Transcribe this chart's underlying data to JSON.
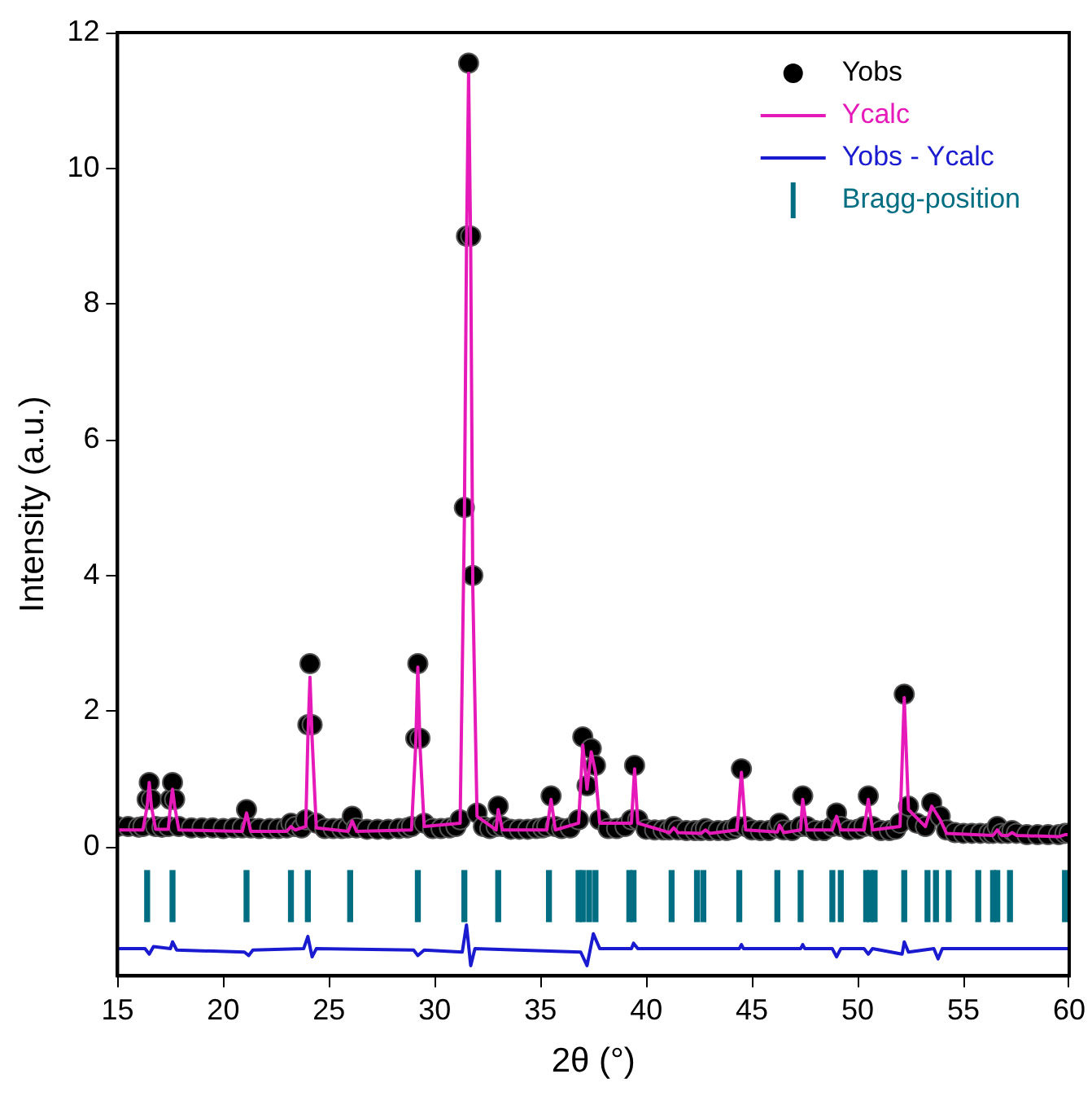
{
  "chart_data": {
    "type": "line",
    "xlabel": "2θ (°)",
    "ylabel": "Intensity (a.u.)",
    "xlim": [
      15,
      60
    ],
    "xticks": [
      15,
      20,
      25,
      30,
      35,
      40,
      45,
      50,
      55,
      60
    ],
    "ylim": [
      -1.9,
      12
    ],
    "yticks": [
      0,
      2,
      4,
      6,
      8,
      10,
      12
    ],
    "grid": false,
    "legend": "top right",
    "series": [
      {
        "name": "Yobs",
        "type": "scatter",
        "marker": "circle",
        "color": "#000000",
        "x": [
          15,
          15.5,
          16,
          16.2,
          16.4,
          16.5,
          16.6,
          16.8,
          17.1,
          17.4,
          17.5,
          17.6,
          17.7,
          17.9,
          18.5,
          19,
          19.5,
          20,
          20.5,
          20.9,
          21.1,
          21.3,
          21.7,
          22.2,
          22.6,
          23,
          23.2,
          23.4,
          23.7,
          23.9,
          24,
          24.1,
          24.2,
          24.4,
          24.8,
          25.2,
          25.6,
          25.9,
          26.1,
          26.3,
          26.8,
          27.3,
          27.8,
          28.3,
          28.7,
          28.9,
          29.1,
          29.2,
          29.3,
          29.5,
          29.9,
          30.3,
          30.7,
          31,
          31.2,
          31.4,
          31.5,
          31.6,
          31.7,
          31.8,
          32,
          32.3,
          32.6,
          32.9,
          33,
          33.2,
          33.6,
          34,
          34.4,
          34.8,
          35.1,
          35.3,
          35.5,
          35.7,
          36,
          36.4,
          36.8,
          37,
          37.2,
          37.4,
          37.6,
          37.8,
          38.2,
          38.6,
          39,
          39.3,
          39.45,
          39.6,
          40,
          40.4,
          40.8,
          41.1,
          41.3,
          41.5,
          41.9,
          42.3,
          42.6,
          42.8,
          43,
          43.4,
          43.8,
          44.1,
          44.3,
          44.5,
          44.7,
          45,
          45.4,
          45.8,
          46.2,
          46.3,
          46.5,
          46.9,
          47.3,
          47.4,
          47.6,
          48,
          48.4,
          48.8,
          49,
          49.2,
          49.6,
          50,
          50.3,
          50.5,
          50.7,
          51.1,
          51.5,
          51.8,
          52,
          52.2,
          52.4,
          52.8,
          53.2,
          53.5,
          53.9,
          54.2,
          54.6,
          55,
          55.4,
          55.8,
          56.2,
          56.4,
          56.6,
          56.8,
          57.1,
          57.3,
          57.5,
          58,
          58.5,
          59,
          59.5,
          59.8,
          60
        ],
        "values": [
          0.3,
          0.3,
          0.29,
          0.3,
          0.7,
          0.95,
          0.7,
          0.3,
          0.29,
          0.3,
          0.7,
          0.95,
          0.7,
          0.3,
          0.28,
          0.28,
          0.28,
          0.27,
          0.28,
          0.28,
          0.55,
          0.28,
          0.27,
          0.27,
          0.27,
          0.28,
          0.35,
          0.3,
          0.28,
          0.4,
          1.8,
          2.7,
          1.8,
          0.35,
          0.27,
          0.27,
          0.27,
          0.28,
          0.45,
          0.28,
          0.26,
          0.26,
          0.26,
          0.27,
          0.28,
          0.3,
          1.6,
          2.7,
          1.6,
          0.35,
          0.27,
          0.27,
          0.28,
          0.3,
          0.4,
          5,
          9,
          11.55,
          9,
          4,
          0.5,
          0.3,
          0.27,
          0.3,
          0.6,
          0.3,
          0.26,
          0.26,
          0.26,
          0.27,
          0.28,
          0.3,
          0.75,
          0.3,
          0.27,
          0.28,
          0.4,
          1.62,
          0.9,
          1.45,
          1.2,
          0.4,
          0.27,
          0.27,
          0.3,
          0.4,
          1.2,
          0.4,
          0.26,
          0.25,
          0.25,
          0.25,
          0.3,
          0.25,
          0.24,
          0.24,
          0.24,
          0.27,
          0.24,
          0.24,
          0.24,
          0.26,
          0.3,
          1.15,
          0.3,
          0.25,
          0.24,
          0.24,
          0.28,
          0.35,
          0.25,
          0.24,
          0.3,
          0.75,
          0.3,
          0.24,
          0.24,
          0.3,
          0.5,
          0.3,
          0.25,
          0.26,
          0.3,
          0.75,
          0.3,
          0.24,
          0.24,
          0.26,
          0.35,
          2.25,
          0.6,
          0.35,
          0.3,
          0.65,
          0.45,
          0.25,
          0.21,
          0.2,
          0.2,
          0.2,
          0.2,
          0.2,
          0.3,
          0.2,
          0.2,
          0.24,
          0.2,
          0.18,
          0.18,
          0.18,
          0.18,
          0.2,
          0.2
        ]
      },
      {
        "name": "Ycalc",
        "marker": "none",
        "color": "#e619b9",
        "x": [
          15,
          16.2,
          16.4,
          16.5,
          16.6,
          16.8,
          17.4,
          17.5,
          17.6,
          17.7,
          17.9,
          20.9,
          21.1,
          21.3,
          23,
          23.2,
          23.4,
          23.9,
          24,
          24.1,
          24.2,
          24.4,
          25.9,
          26.1,
          26.3,
          28.9,
          29.1,
          29.2,
          29.3,
          29.5,
          31.2,
          31.4,
          31.5,
          31.6,
          31.7,
          31.8,
          32,
          32.9,
          33,
          33.2,
          35.3,
          35.5,
          35.7,
          36.8,
          37,
          37.2,
          37.4,
          37.6,
          37.8,
          39.3,
          39.45,
          39.6,
          41.1,
          41.3,
          41.5,
          42.6,
          42.8,
          43,
          44.3,
          44.5,
          44.7,
          46.2,
          46.3,
          46.5,
          47.3,
          47.4,
          47.6,
          48.8,
          49,
          49.2,
          50.3,
          50.5,
          50.7,
          52,
          52.2,
          52.4,
          53.2,
          53.5,
          53.9,
          54.2,
          56.4,
          56.6,
          56.8,
          57.1,
          57.3,
          57.5,
          59.5,
          59.8,
          60
        ],
        "values": [
          0.25,
          0.25,
          0.6,
          0.95,
          0.6,
          0.26,
          0.26,
          0.6,
          0.85,
          0.6,
          0.25,
          0.23,
          0.5,
          0.23,
          0.23,
          0.3,
          0.25,
          0.3,
          1.6,
          2.5,
          1.6,
          0.28,
          0.23,
          0.38,
          0.23,
          0.25,
          1.5,
          2.65,
          1.5,
          0.3,
          0.35,
          4.8,
          8.8,
          11.4,
          8.8,
          3.8,
          0.45,
          0.25,
          0.55,
          0.25,
          0.25,
          0.7,
          0.25,
          0.35,
          1.5,
          0.85,
          1.4,
          1.1,
          0.35,
          0.35,
          1.15,
          0.35,
          0.21,
          0.28,
          0.21,
          0.2,
          0.25,
          0.2,
          0.25,
          1.1,
          0.25,
          0.22,
          0.32,
          0.21,
          0.25,
          0.7,
          0.25,
          0.25,
          0.45,
          0.25,
          0.25,
          0.7,
          0.25,
          0.3,
          2.2,
          0.55,
          0.3,
          0.6,
          0.4,
          0.2,
          0.17,
          0.25,
          0.17,
          0.17,
          0.21,
          0.17,
          0.15,
          0.18,
          0.18
        ]
      },
      {
        "name": "Yobs - Ycalc",
        "marker": "none",
        "color": "#1a1ad0",
        "x": [
          15,
          16.3,
          16.5,
          16.7,
          17.5,
          17.6,
          17.8,
          21,
          21.2,
          21.4,
          23.8,
          24,
          24.2,
          24.4,
          29,
          29.2,
          29.5,
          31.3,
          31.5,
          31.7,
          31.9,
          36.9,
          37.2,
          37.5,
          37.8,
          39.3,
          39.4,
          39.6,
          44.4,
          44.5,
          44.6,
          47.3,
          47.4,
          47.5,
          48.8,
          49,
          49.2,
          50.3,
          50.5,
          50.7,
          52.1,
          52.2,
          52.4,
          53.6,
          53.8,
          54,
          60
        ],
        "values": [
          -1.5,
          -1.5,
          -1.58,
          -1.47,
          -1.5,
          -1.4,
          -1.52,
          -1.55,
          -1.6,
          -1.52,
          -1.5,
          -1.32,
          -1.62,
          -1.5,
          -1.52,
          -1.6,
          -1.52,
          -1.55,
          -1.15,
          -1.75,
          -1.5,
          -1.55,
          -1.75,
          -1.28,
          -1.5,
          -1.5,
          -1.42,
          -1.5,
          -1.5,
          -1.44,
          -1.5,
          -1.5,
          -1.44,
          -1.5,
          -1.5,
          -1.62,
          -1.5,
          -1.5,
          -1.58,
          -1.5,
          -1.58,
          -1.4,
          -1.55,
          -1.5,
          -1.65,
          -1.5,
          -1.5
        ]
      },
      {
        "name": "Bragg-position",
        "type": "bar",
        "color": "#006e82",
        "x": [
          16.4,
          17.6,
          21.1,
          23.2,
          24,
          26,
          29.2,
          31.4,
          33,
          35.4,
          36.8,
          37,
          37.3,
          37.6,
          39.2,
          39.4,
          41.2,
          42.4,
          42.7,
          44.4,
          46.2,
          47.3,
          48.8,
          49.2,
          50.4,
          50.6,
          50.8,
          52.2,
          53.3,
          53.7,
          54.3,
          55.7,
          56.4,
          56.6,
          57.2,
          59.8
        ],
        "base": [
          -1.1,
          -1.1,
          -1.1,
          -1.1,
          -1.1,
          -1.1,
          -1.1,
          -1.1,
          -1.1,
          -1.1,
          -1.1,
          -1.1,
          -1.1,
          -1.1,
          -1.1,
          -1.1,
          -1.1,
          -1.1,
          -1.1,
          -1.1,
          -1.1,
          -1.1,
          -1.1,
          -1.1,
          -1.1,
          -1.1,
          -1.1,
          -1.1,
          -1.1,
          -1.1,
          -1.1,
          -1.1,
          -1.1,
          -1.1,
          -1.1,
          -1.1
        ],
        "values": [
          0.75,
          0.75,
          0.75,
          0.75,
          0.75,
          0.75,
          0.75,
          0.75,
          0.75,
          0.75,
          0.75,
          0.75,
          0.75,
          0.75,
          0.75,
          0.75,
          0.75,
          0.75,
          0.75,
          0.75,
          0.75,
          0.75,
          0.75,
          0.75,
          0.75,
          0.75,
          0.75,
          0.75,
          0.75,
          0.75,
          0.75,
          0.75,
          0.75,
          0.75,
          0.75,
          0.75
        ]
      }
    ]
  }
}
